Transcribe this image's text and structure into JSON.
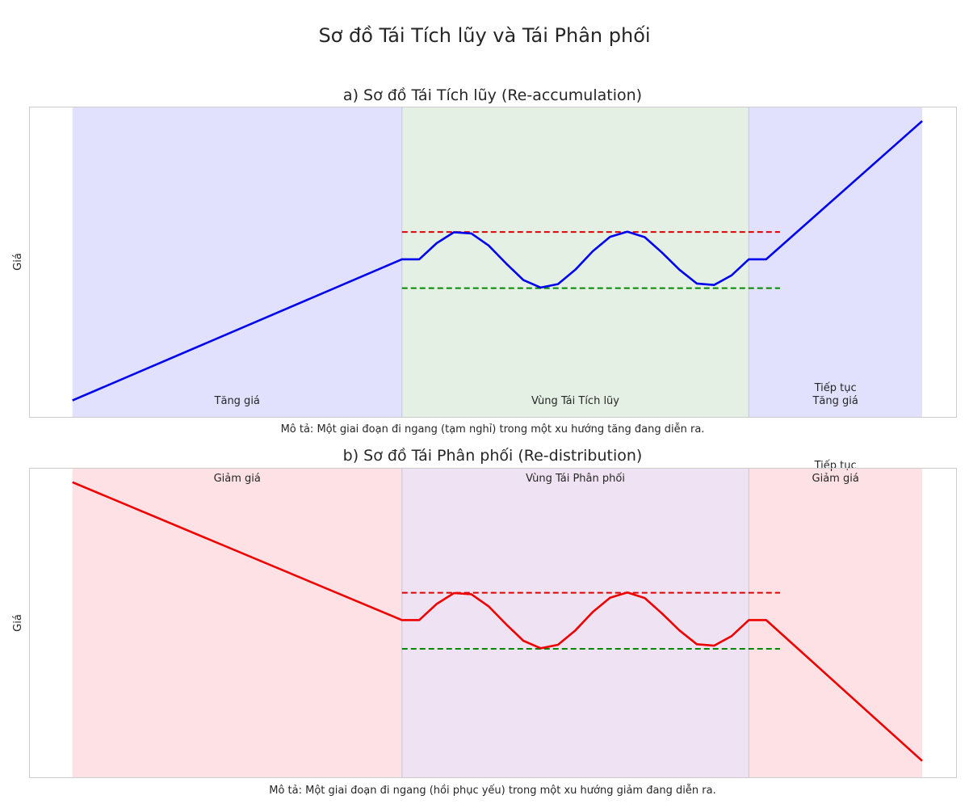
{
  "figure_title": "Sơ đồ Tái Tích lũy và Tái Phân phối",
  "colors": {
    "rise_region": "#e1e1fe",
    "fall_region": "#fee1e4",
    "accum_zone": "#e4f0e4",
    "distrib_zone": "#efe2f2",
    "uptrend_line": "#0000ee",
    "downtrend_line": "#ee0000",
    "resistance": "#dd0000",
    "support": "#008800",
    "frame": "#cccccc"
  },
  "chart_data": [
    {
      "type": "line",
      "title": "a) Sơ đồ Tái Tích lũy (Re-accumulation)",
      "ylabel": "Giá",
      "description": "Mô tả: Một giai đoạn đi ngang (tạm nghỉ) trong một xu hướng tăng đang diễn ra.",
      "xlim": [
        -2.5,
        51
      ],
      "ylim": [
        -5,
        103
      ],
      "line_color_key": "uptrend_line",
      "label_pos": "bottom",
      "regions": [
        {
          "x0": 0,
          "x1": 19,
          "label": "Tăng giá",
          "color_key": "rise_region"
        },
        {
          "x0": 19,
          "x1": 39,
          "label": "Vùng Tái Tích lũy",
          "color_key": "accum_zone"
        },
        {
          "x0": 39,
          "x1": 49,
          "label": "Tiếp tục\nTăng giá",
          "color_key": "rise_region"
        }
      ],
      "hlines": [
        {
          "y": 59.5,
          "x0": 19,
          "x1": 40.8,
          "color_key": "resistance"
        },
        {
          "y": 40,
          "x0": 19,
          "x1": 40.8,
          "color_key": "support"
        }
      ],
      "series": [
        {
          "x": [
            0,
            19,
            20,
            21,
            22,
            23,
            24,
            25,
            26,
            27,
            28,
            29,
            30,
            31,
            32,
            33,
            34,
            35,
            36,
            37,
            38,
            39,
            40,
            49
          ],
          "y": [
            1,
            50,
            50,
            55.6,
            59.4,
            59,
            54.8,
            48.6,
            42.8,
            40.2,
            41.4,
            46.4,
            52.8,
            57.8,
            59.6,
            57.7,
            52.3,
            46.4,
            41.6,
            41.1,
            44.4,
            50,
            50,
            98
          ]
        }
      ]
    },
    {
      "type": "line",
      "title": "b) Sơ đồ Tái Phân phối (Re-distribution)",
      "ylabel": "Giá",
      "description": "Mô tả: Một giai đoạn đi ngang (hồi phục yếu) trong một xu hướng giảm đang diễn ra.",
      "xlim": [
        -2.5,
        51
      ],
      "ylim": [
        -5,
        103
      ],
      "line_color_key": "downtrend_line",
      "label_pos": "top",
      "regions": [
        {
          "x0": 0,
          "x1": 19,
          "label": "Giảm giá",
          "color_key": "fall_region"
        },
        {
          "x0": 19,
          "x1": 39,
          "label": "Vùng Tái Phân phối",
          "color_key": "distrib_zone"
        },
        {
          "x0": 39,
          "x1": 49,
          "label": "Tiếp tục\nGiảm giá",
          "color_key": "fall_region"
        }
      ],
      "hlines": [
        {
          "y": 59.5,
          "x0": 19,
          "x1": 40.8,
          "color_key": "resistance"
        },
        {
          "y": 40,
          "x0": 19,
          "x1": 40.8,
          "color_key": "support"
        }
      ],
      "series": [
        {
          "x": [
            0,
            19,
            20,
            21,
            22,
            23,
            24,
            25,
            26,
            27,
            28,
            29,
            30,
            31,
            32,
            33,
            34,
            35,
            36,
            37,
            38,
            39,
            40,
            49
          ],
          "y": [
            98,
            50,
            50,
            55.6,
            59.4,
            59,
            54.8,
            48.6,
            42.8,
            40.2,
            41.4,
            46.4,
            52.8,
            57.8,
            59.6,
            57.7,
            52.3,
            46.4,
            41.6,
            41.1,
            44.4,
            50,
            50,
            1
          ]
        }
      ]
    }
  ]
}
